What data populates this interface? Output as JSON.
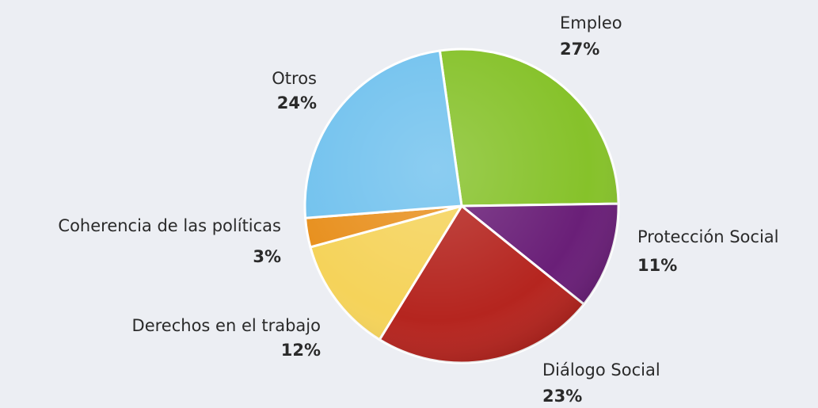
{
  "chart_data": {
    "type": "pie",
    "categories": [
      "Empleo",
      "Protección Social",
      "Diálogo Social",
      "Derechos en el trabajo",
      "Coherencia de las políticas",
      "Otros"
    ],
    "values": [
      27,
      11,
      23,
      12,
      3,
      24
    ],
    "value_labels": [
      "27%",
      "11%",
      "23%",
      "12%",
      "3%",
      "24%"
    ],
    "colors": [
      "#86c22a",
      "#6a1f78",
      "#b5251f",
      "#f5d35a",
      "#e8901e",
      "#72c2ee"
    ]
  }
}
